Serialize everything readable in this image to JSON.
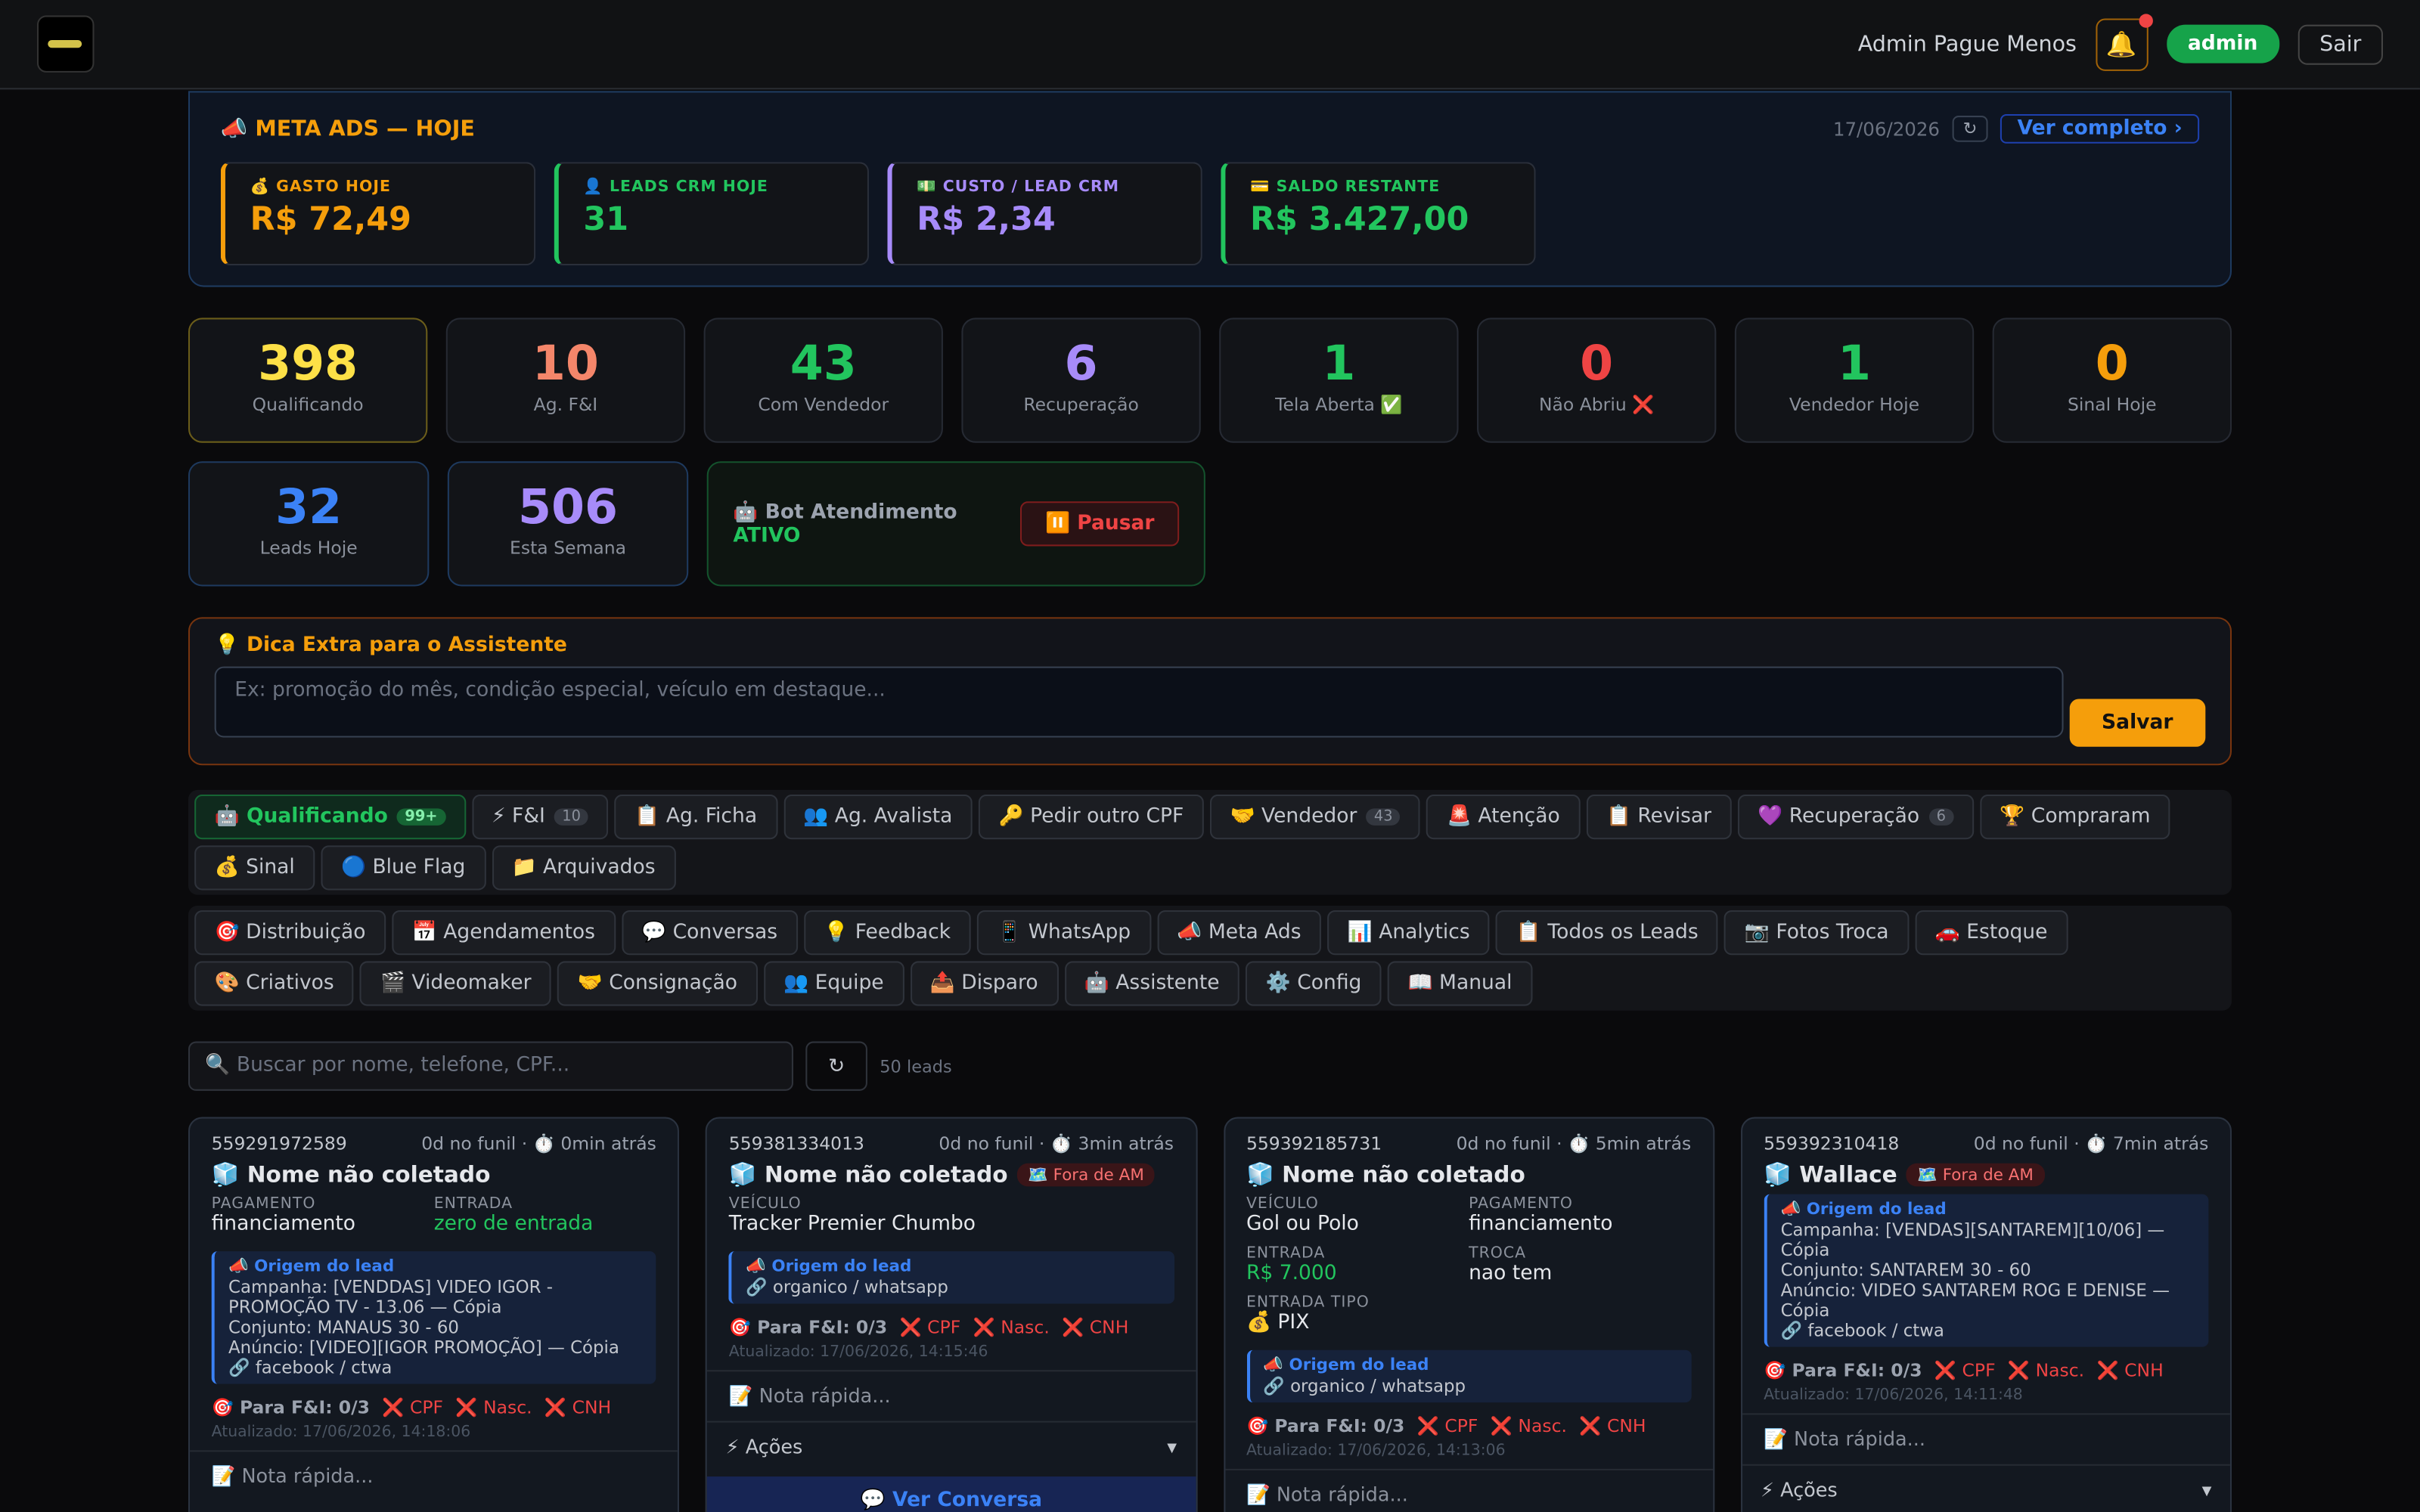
{
  "header": {
    "user": "Admin Pague Menos",
    "bell": "🔔",
    "role": "admin",
    "logout": "Sair"
  },
  "meta_ads": {
    "title": "📣 META ADS — HOJE",
    "date": "17/06/2026",
    "refresh": "↻",
    "link": "Ver completo ›",
    "cards": [
      {
        "label": "💰 GASTO HOJE",
        "value": "R$ 72,49",
        "color": "#f59e0b"
      },
      {
        "label": "👤 LEADS CRM HOJE",
        "value": "31",
        "color": "#22c55e"
      },
      {
        "label": "💵 CUSTO / LEAD CRM",
        "value": "R$ 2,34",
        "color": "#a78bfa"
      },
      {
        "label": "💳 SALDO RESTANTE",
        "value": "R$ 3.427,00",
        "color": "#22c55e"
      }
    ]
  },
  "stats": [
    {
      "value": 398,
      "label": "Qualificando",
      "color": "#fde047"
    },
    {
      "value": 10,
      "label": "Ag. F&I",
      "color": "#f4866a"
    },
    {
      "value": 43,
      "label": "Com Vendedor",
      "color": "#22c55e"
    },
    {
      "value": 6,
      "label": "Recuperação",
      "color": "#a78bfa"
    },
    {
      "value": 1,
      "label": "Tela Aberta ✅",
      "color": "#22c55e"
    },
    {
      "value": 0,
      "label": "Não Abriu ❌",
      "color": "#ef4444"
    },
    {
      "value": 1,
      "label": "Vendedor Hoje",
      "color": "#22c55e"
    },
    {
      "value": 0,
      "label": "Sinal Hoje",
      "color": "#f59e0b"
    }
  ],
  "stats2": [
    {
      "value": 32,
      "label": "Leads Hoje",
      "color": "#3b82f6"
    },
    {
      "value": 506,
      "label": "Esta Semana",
      "color": "#a78bfa"
    }
  ],
  "bot": {
    "label": "🤖 Bot Atendimento",
    "status": "ATIVO",
    "button": "⏸️ Pausar"
  },
  "tip": {
    "title": "💡 Dica Extra para o Assistente",
    "placeholder": "Ex: promoção do mês, condição especial, veículo em destaque...",
    "button": "Salvar"
  },
  "tabs": [
    {
      "label": "🤖 Qualificando",
      "badge": "99+"
    },
    {
      "label": "⚡ F&I",
      "badge": 10
    },
    {
      "label": "📋 Ag. Ficha"
    },
    {
      "label": "👥 Ag. Avalista"
    },
    {
      "label": "🔑 Pedir outro CPF"
    },
    {
      "label": "🤝 Vendedor",
      "badge": 43
    },
    {
      "label": "🚨 Atenção"
    },
    {
      "label": "📋 Revisar"
    },
    {
      "label": "💜 Recuperação",
      "badge": 6
    },
    {
      "label": "🏆 Compraram"
    },
    {
      "label": "💰 Sinal"
    },
    {
      "label": "🔵 Blue Flag"
    },
    {
      "label": "📁 Arquivados"
    }
  ],
  "nav": [
    "🎯 Distribuição",
    "📅 Agendamentos",
    "💬 Conversas",
    "💡 Feedback",
    "📱 WhatsApp",
    "📣 Meta Ads",
    "📊 Analytics",
    "📋 Todos os Leads",
    "📷 Fotos Troca",
    "🚗 Estoque",
    "🎨 Criativos",
    "🎬 Videomaker",
    "🤝 Consignação",
    "👥 Equipe",
    "📤 Disparo",
    "🤖 Assistente",
    "⚙️ Config",
    "📖 Manual"
  ],
  "search": {
    "placeholder": "🔍 Buscar por nome, telefone, CPF...",
    "refresh": "↻",
    "count": "50 leads"
  },
  "leads": [
    {
      "phone": "559291972589",
      "meta": "0d no funil · ⏱️ 0min atrás",
      "name": "🧊 Nome não coletado",
      "fields": [
        {
          "label": "PAGAMENTO",
          "value": "financiamento"
        },
        {
          "label": "ENTRADA",
          "value": "zero de entrada",
          "color": "#22c55e"
        }
      ],
      "origin": {
        "title": "📣 Origem do lead",
        "lines": [
          "Campanha: [VENDDAS] VIDEO IGOR - PROMOÇÃO TV - 13.06 — Cópia",
          "Conjunto: MANAUS 30 - 60",
          "Anúncio: [VIDEO][IGOR PROMOÇÃO] — Cópia",
          "🔗 facebook / ctwa"
        ]
      },
      "check": "🎯 Para F&I: 0/3",
      "missing": [
        "❌ CPF",
        "❌ Nasc.",
        "❌ CNH"
      ],
      "updated": "Atualizado: 17/06/2026, 14:18:06",
      "note": "📝 Nota rápida..."
    },
    {
      "phone": "559381334013",
      "meta": "0d no funil · ⏱️ 3min atrás",
      "name": "🧊 Nome não coletado",
      "tag": "🗺️ Fora de AM",
      "fields": [
        {
          "label": "VEÍCULO",
          "value": "Tracker Premier Chumbo",
          "wide": true
        }
      ],
      "origin": {
        "title": "📣 Origem do lead",
        "lines": [
          "🔗 organico / whatsapp"
        ]
      },
      "check": "🎯 Para F&I: 0/3",
      "missing": [
        "❌ CPF",
        "❌ Nasc.",
        "❌ CNH"
      ],
      "updated": "Atualizado: 17/06/2026, 14:15:46",
      "note": "📝 Nota rápida...",
      "actions": "⚡ Ações",
      "arrow": "▾",
      "conversation": "💬 Ver Conversa"
    },
    {
      "phone": "559392185731",
      "meta": "0d no funil · ⏱️ 5min atrás",
      "name": "🧊 Nome não coletado",
      "fields": [
        {
          "label": "VEÍCULO",
          "value": "Gol ou Polo"
        },
        {
          "label": "PAGAMENTO",
          "value": "financiamento"
        },
        {
          "label": "ENTRADA",
          "value": "R$ 7.000",
          "color": "#22c55e"
        },
        {
          "label": "TROCA",
          "value": "nao tem"
        },
        {
          "label": "ENTRADA TIPO",
          "value": "💰 PIX",
          "wide": true
        }
      ],
      "origin": {
        "title": "📣 Origem do lead",
        "lines": [
          "🔗 organico / whatsapp"
        ]
      },
      "check": "🎯 Para F&I: 0/3",
      "missing": [
        "❌ CPF",
        "❌ Nasc.",
        "❌ CNH"
      ],
      "updated": "Atualizado: 17/06/2026, 14:13:06",
      "note": "📝 Nota rápida..."
    },
    {
      "phone": "559392310418",
      "meta": "0d no funil · ⏱️ 7min atrás",
      "name": "🧊 Wallace",
      "tag": "🗺️ Fora de AM",
      "fields": [],
      "origin": {
        "title": "📣 Origem do lead",
        "lines": [
          "Campanha: [VENDAS][SANTAREM][10/06] — Cópia",
          "Conjunto: SANTAREM 30 - 60",
          "Anúncio: VIDEO SANTAREM ROG E DENISE — Cópia",
          "🔗 facebook / ctwa"
        ]
      },
      "check": "🎯 Para F&I: 0/3",
      "missing": [
        "❌ CPF",
        "❌ Nasc.",
        "❌ CNH"
      ],
      "updated": "Atualizado: 17/06/2026, 14:11:48",
      "note": "📝 Nota rápida...",
      "actions": "⚡ Ações",
      "arrow": "▾"
    }
  ]
}
